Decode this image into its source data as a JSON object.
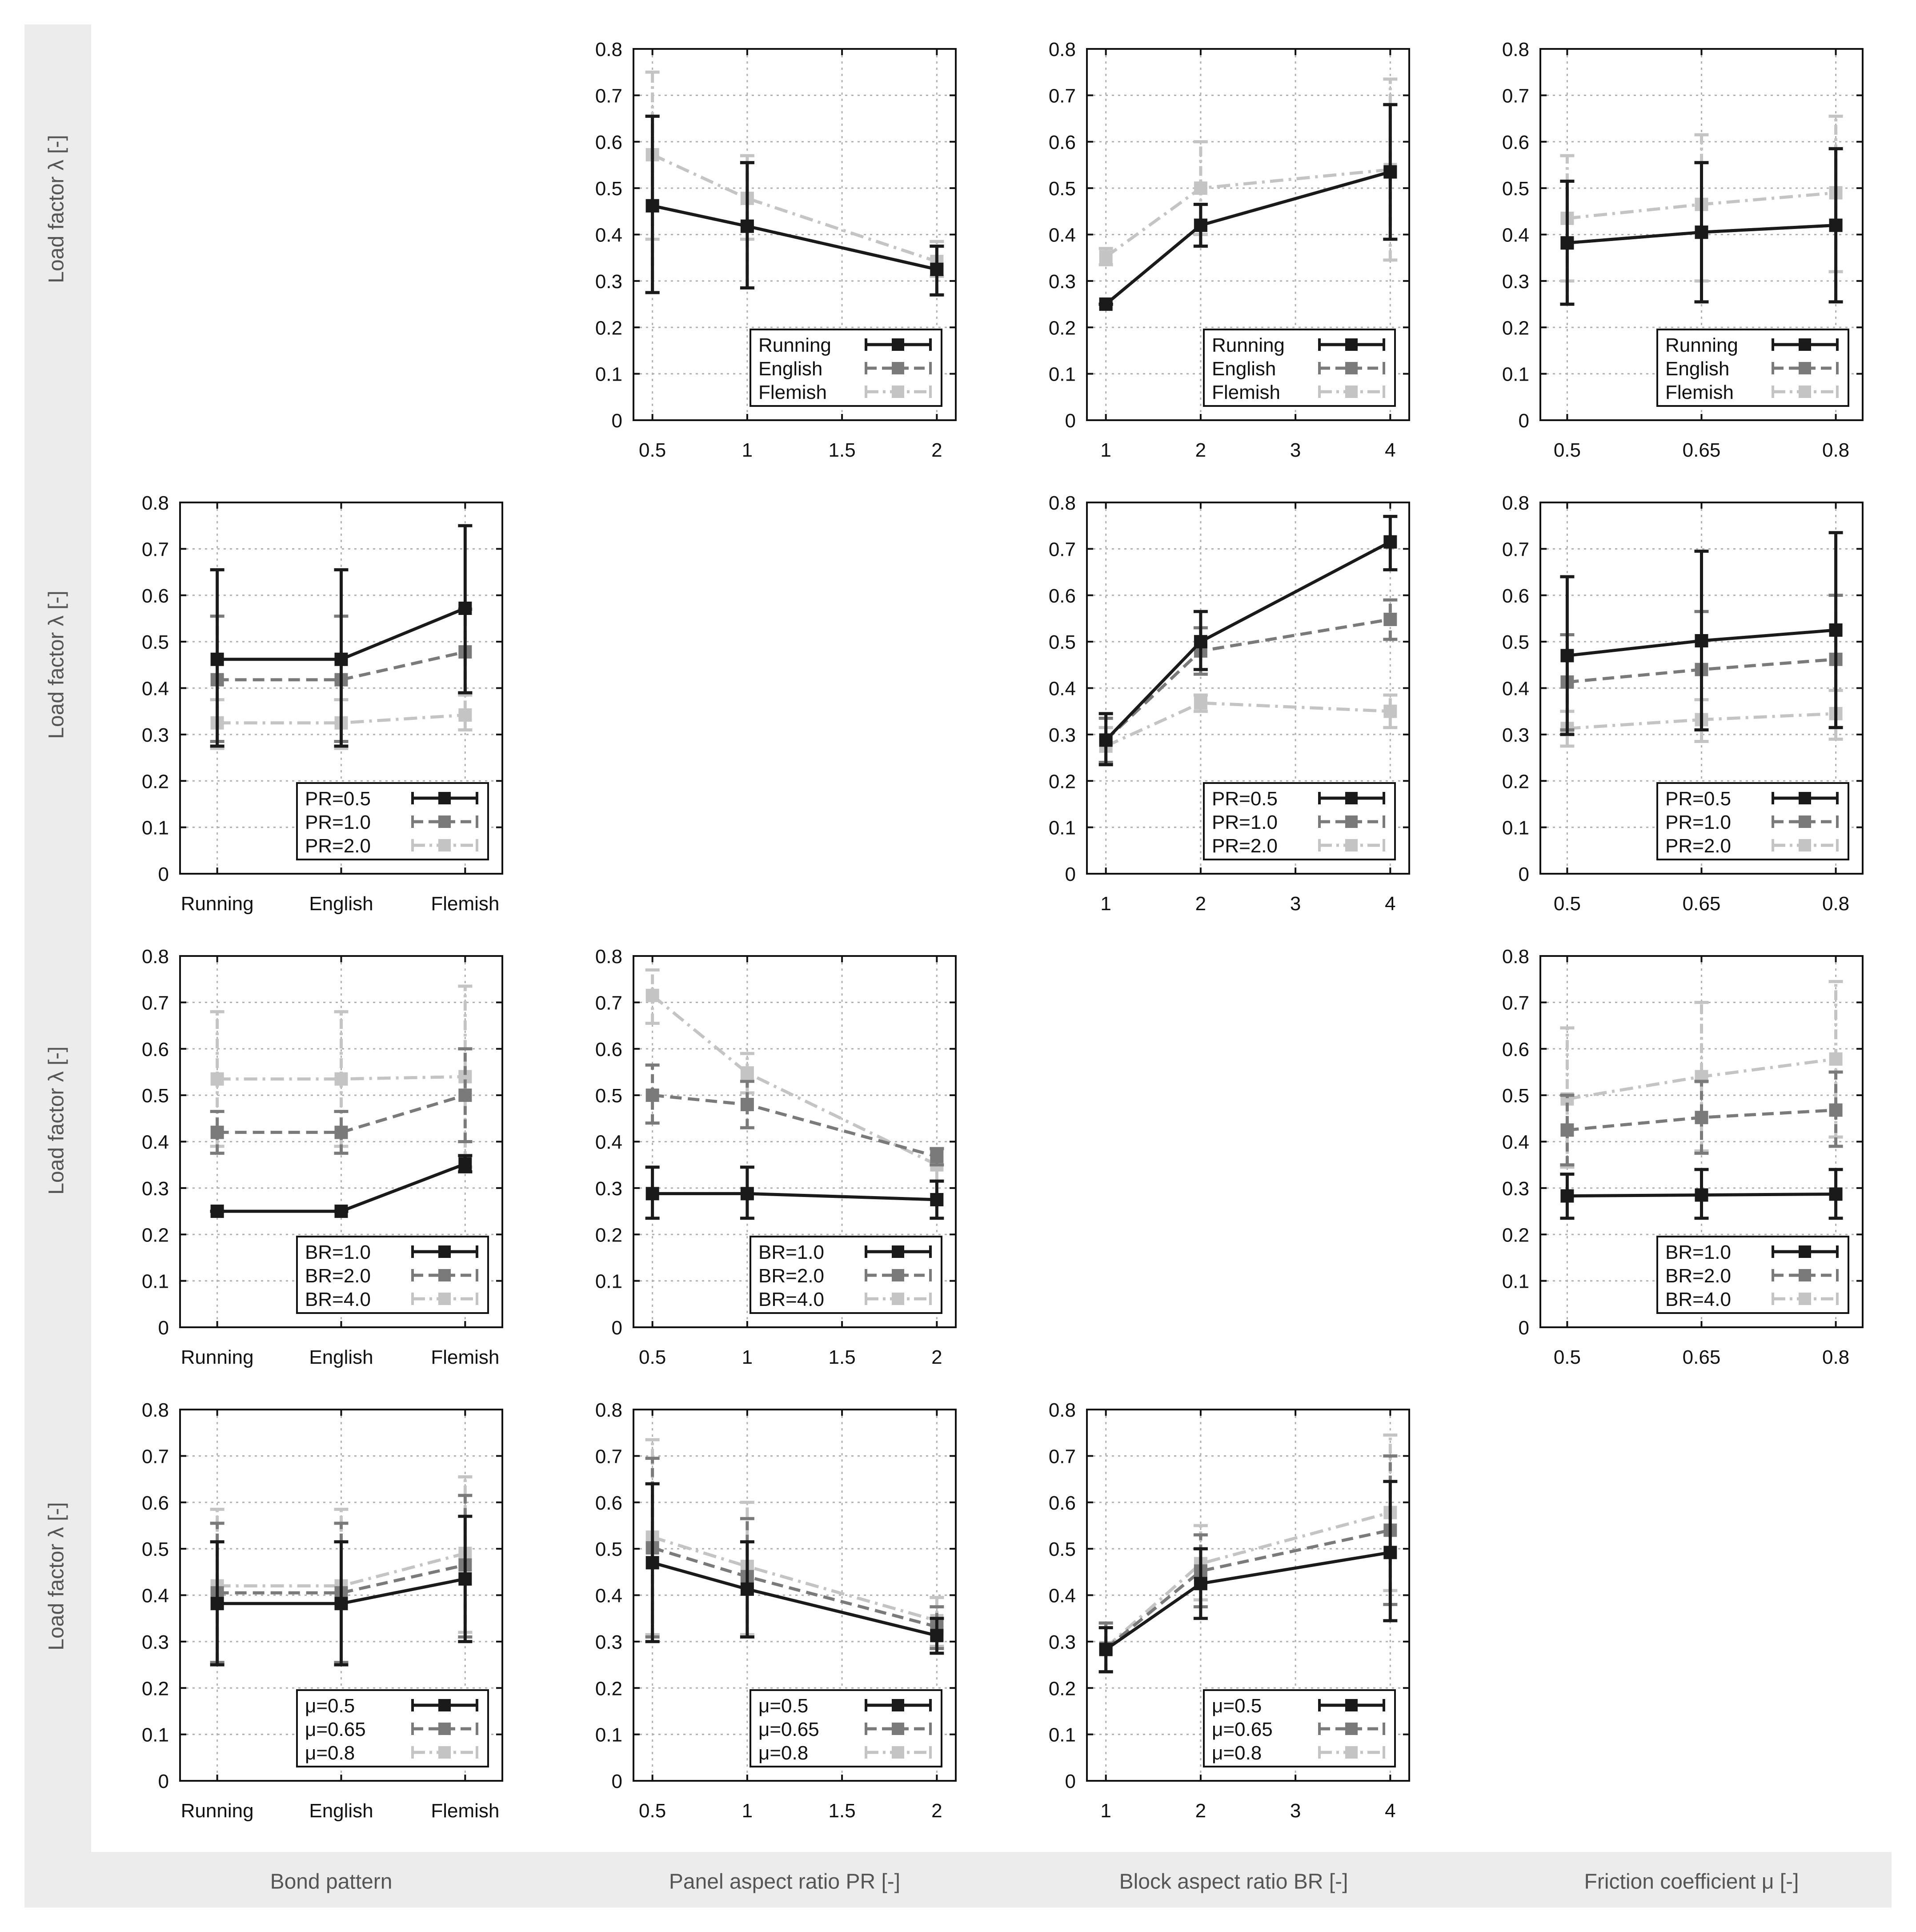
{
  "figure": {
    "row_labels": [
      "Load factor λ [-]",
      "Load factor λ [-]",
      "Load factor λ [-]",
      "Load factor λ [-]"
    ],
    "column_labels": [
      "Bond pattern",
      "Panel aspect ratio PR [-]",
      "Block aspect ratio BR [-]",
      "Friction coefficient μ [-]"
    ]
  },
  "styles": {
    "series_colors": [
      "#1a1a1a",
      "#7a7a7a",
      "#c4c4c4"
    ],
    "series_dash": [
      "solid",
      "dashed",
      "dashdot"
    ],
    "grid_color": "#b0b0b0"
  },
  "chart_data": [
    {
      "id": "r1c2",
      "type": "line",
      "ylim": [
        0,
        0.8
      ],
      "yticks": [
        "0",
        "0.1",
        "0.2",
        "0.3",
        "0.4",
        "0.5",
        "0.6",
        "0.7",
        "0.8"
      ],
      "x": [
        0.5,
        1,
        2
      ],
      "xlim": [
        0.4,
        2.1
      ],
      "xticks": [
        0.5,
        1,
        1.5,
        2
      ],
      "xtick_labels": [
        "0.5",
        "1",
        "1.5",
        "2"
      ],
      "series": [
        {
          "name": "Running",
          "values": [
            0.462,
            0.418,
            0.325
          ],
          "err_low": [
            0.275,
            0.285,
            0.27
          ],
          "err_high": [
            0.655,
            0.555,
            0.375
          ]
        },
        {
          "name": "English",
          "values": [
            0.462,
            0.418,
            0.325
          ],
          "err_low": [
            0.275,
            0.285,
            0.27
          ],
          "err_high": [
            0.655,
            0.555,
            0.375
          ]
        },
        {
          "name": "Flemish",
          "values": [
            0.572,
            0.478,
            0.342
          ],
          "err_low": [
            0.39,
            0.39,
            0.31
          ],
          "err_high": [
            0.75,
            0.57,
            0.385
          ]
        }
      ]
    },
    {
      "id": "r1c3",
      "type": "line",
      "ylim": [
        0,
        0.8
      ],
      "yticks": [
        "0",
        "0.1",
        "0.2",
        "0.3",
        "0.4",
        "0.5",
        "0.6",
        "0.7",
        "0.8"
      ],
      "x": [
        1,
        2,
        4
      ],
      "xlim": [
        0.8,
        4.2
      ],
      "xticks": [
        1,
        2,
        3,
        4
      ],
      "xtick_labels": [
        "1",
        "2",
        "3",
        "4"
      ],
      "series": [
        {
          "name": "Running",
          "values": [
            0.25,
            0.42,
            0.535
          ],
          "err_low": [
            0.25,
            0.375,
            0.39
          ],
          "err_high": [
            0.25,
            0.465,
            0.68
          ]
        },
        {
          "name": "English",
          "values": [
            0.25,
            0.42,
            0.535
          ],
          "err_low": [
            0.25,
            0.375,
            0.39
          ],
          "err_high": [
            0.25,
            0.465,
            0.68
          ]
        },
        {
          "name": "Flemish",
          "values": [
            0.352,
            0.5,
            0.54
          ],
          "err_low": [
            0.335,
            0.4,
            0.345
          ],
          "err_high": [
            0.37,
            0.6,
            0.735
          ]
        }
      ]
    },
    {
      "id": "r1c4",
      "type": "line",
      "ylim": [
        0,
        0.8
      ],
      "yticks": [
        "0",
        "0.1",
        "0.2",
        "0.3",
        "0.4",
        "0.5",
        "0.6",
        "0.7",
        "0.8"
      ],
      "x": [
        0.5,
        0.65,
        0.8
      ],
      "xlim": [
        0.47,
        0.83
      ],
      "xticks": [
        0.5,
        0.65,
        0.8
      ],
      "xtick_labels": [
        "0.5",
        "0.65",
        "0.8"
      ],
      "series": [
        {
          "name": "Running",
          "values": [
            0.382,
            0.405,
            0.42
          ],
          "err_low": [
            0.25,
            0.255,
            0.255
          ],
          "err_high": [
            0.515,
            0.555,
            0.585
          ]
        },
        {
          "name": "English",
          "values": [
            0.382,
            0.405,
            0.42
          ],
          "err_low": [
            0.25,
            0.255,
            0.255
          ],
          "err_high": [
            0.515,
            0.555,
            0.585
          ]
        },
        {
          "name": "Flemish",
          "values": [
            0.435,
            0.465,
            0.49
          ],
          "err_low": [
            0.3,
            0.3,
            0.32
          ],
          "err_high": [
            0.57,
            0.615,
            0.655
          ]
        }
      ]
    },
    {
      "id": "r2c1",
      "type": "line",
      "ylim": [
        0,
        0.8
      ],
      "yticks": [
        "0",
        "0.1",
        "0.2",
        "0.3",
        "0.4",
        "0.5",
        "0.6",
        "0.7",
        "0.8"
      ],
      "x": [
        1,
        2,
        3
      ],
      "xlim": [
        0.7,
        3.3
      ],
      "xticks": [
        1,
        2,
        3
      ],
      "xtick_labels": [
        "Running",
        "English",
        "Flemish"
      ],
      "series": [
        {
          "name": "PR=0.5",
          "values": [
            0.462,
            0.462,
            0.572
          ],
          "err_low": [
            0.275,
            0.275,
            0.39
          ],
          "err_high": [
            0.655,
            0.655,
            0.75
          ]
        },
        {
          "name": "PR=1.0",
          "values": [
            0.418,
            0.418,
            0.478
          ],
          "err_low": [
            0.285,
            0.285,
            0.39
          ],
          "err_high": [
            0.555,
            0.555,
            0.57
          ]
        },
        {
          "name": "PR=2.0",
          "values": [
            0.325,
            0.325,
            0.342
          ],
          "err_low": [
            0.27,
            0.27,
            0.31
          ],
          "err_high": [
            0.375,
            0.375,
            0.385
          ]
        }
      ]
    },
    {
      "id": "r2c3",
      "type": "line",
      "ylim": [
        0,
        0.8
      ],
      "yticks": [
        "0",
        "0.1",
        "0.2",
        "0.3",
        "0.4",
        "0.5",
        "0.6",
        "0.7",
        "0.8"
      ],
      "x": [
        1,
        2,
        4
      ],
      "xlim": [
        0.8,
        4.2
      ],
      "xticks": [
        1,
        2,
        3,
        4
      ],
      "xtick_labels": [
        "1",
        "2",
        "3",
        "4"
      ],
      "series": [
        {
          "name": "PR=0.5",
          "values": [
            0.288,
            0.5,
            0.715
          ],
          "err_low": [
            0.235,
            0.44,
            0.655
          ],
          "err_high": [
            0.345,
            0.565,
            0.77
          ]
        },
        {
          "name": "PR=1.0",
          "values": [
            0.288,
            0.48,
            0.548
          ],
          "err_low": [
            0.24,
            0.43,
            0.505
          ],
          "err_high": [
            0.335,
            0.53,
            0.59
          ]
        },
        {
          "name": "PR=2.0",
          "values": [
            0.275,
            0.368,
            0.35
          ],
          "err_low": [
            0.235,
            0.35,
            0.315
          ],
          "err_high": [
            0.315,
            0.385,
            0.385
          ]
        }
      ]
    },
    {
      "id": "r2c4",
      "type": "line",
      "ylim": [
        0,
        0.8
      ],
      "yticks": [
        "0",
        "0.1",
        "0.2",
        "0.3",
        "0.4",
        "0.5",
        "0.6",
        "0.7",
        "0.8"
      ],
      "x": [
        0.5,
        0.65,
        0.8
      ],
      "xlim": [
        0.47,
        0.83
      ],
      "xticks": [
        0.5,
        0.65,
        0.8
      ],
      "xtick_labels": [
        "0.5",
        "0.65",
        "0.8"
      ],
      "series": [
        {
          "name": "PR=0.5",
          "values": [
            0.47,
            0.502,
            0.525
          ],
          "err_low": [
            0.3,
            0.31,
            0.315
          ],
          "err_high": [
            0.64,
            0.695,
            0.735
          ]
        },
        {
          "name": "PR=1.0",
          "values": [
            0.413,
            0.44,
            0.462
          ],
          "err_low": [
            0.31,
            0.31,
            0.315
          ],
          "err_high": [
            0.515,
            0.565,
            0.6
          ]
        },
        {
          "name": "PR=2.0",
          "values": [
            0.313,
            0.332,
            0.345
          ],
          "err_low": [
            0.275,
            0.285,
            0.29
          ],
          "err_high": [
            0.35,
            0.375,
            0.395
          ]
        }
      ]
    },
    {
      "id": "r3c1",
      "type": "line",
      "ylim": [
        0,
        0.8
      ],
      "yticks": [
        "0",
        "0.1",
        "0.2",
        "0.3",
        "0.4",
        "0.5",
        "0.6",
        "0.7",
        "0.8"
      ],
      "x": [
        1,
        2,
        3
      ],
      "xlim": [
        0.7,
        3.3
      ],
      "xticks": [
        1,
        2,
        3
      ],
      "xtick_labels": [
        "Running",
        "English",
        "Flemish"
      ],
      "series": [
        {
          "name": "BR=1.0",
          "values": [
            0.25,
            0.25,
            0.352
          ],
          "err_low": [
            0.25,
            0.25,
            0.335
          ],
          "err_high": [
            0.25,
            0.25,
            0.37
          ]
        },
        {
          "name": "BR=2.0",
          "values": [
            0.42,
            0.42,
            0.5
          ],
          "err_low": [
            0.375,
            0.375,
            0.4
          ],
          "err_high": [
            0.465,
            0.465,
            0.6
          ]
        },
        {
          "name": "BR=4.0",
          "values": [
            0.535,
            0.535,
            0.54
          ],
          "err_low": [
            0.39,
            0.39,
            0.345
          ],
          "err_high": [
            0.68,
            0.68,
            0.735
          ]
        }
      ]
    },
    {
      "id": "r3c2",
      "type": "line",
      "ylim": [
        0,
        0.8
      ],
      "yticks": [
        "0",
        "0.1",
        "0.2",
        "0.3",
        "0.4",
        "0.5",
        "0.6",
        "0.7",
        "0.8"
      ],
      "x": [
        0.5,
        1,
        2
      ],
      "xlim": [
        0.4,
        2.1
      ],
      "xticks": [
        0.5,
        1,
        1.5,
        2
      ],
      "xtick_labels": [
        "0.5",
        "1",
        "1.5",
        "2"
      ],
      "series": [
        {
          "name": "BR=1.0",
          "values": [
            0.288,
            0.288,
            0.275
          ],
          "err_low": [
            0.235,
            0.235,
            0.235
          ],
          "err_high": [
            0.345,
            0.345,
            0.315
          ]
        },
        {
          "name": "BR=2.0",
          "values": [
            0.5,
            0.48,
            0.368
          ],
          "err_low": [
            0.44,
            0.43,
            0.35
          ],
          "err_high": [
            0.565,
            0.53,
            0.385
          ]
        },
        {
          "name": "BR=4.0",
          "values": [
            0.715,
            0.548,
            0.35
          ],
          "err_low": [
            0.655,
            0.505,
            0.315
          ],
          "err_high": [
            0.77,
            0.59,
            0.385
          ]
        }
      ]
    },
    {
      "id": "r3c4",
      "type": "line",
      "ylim": [
        0,
        0.8
      ],
      "yticks": [
        "0",
        "0.1",
        "0.2",
        "0.3",
        "0.4",
        "0.5",
        "0.6",
        "0.7",
        "0.8"
      ],
      "x": [
        0.5,
        0.65,
        0.8
      ],
      "xlim": [
        0.47,
        0.83
      ],
      "xticks": [
        0.5,
        0.65,
        0.8
      ],
      "xtick_labels": [
        "0.5",
        "0.65",
        "0.8"
      ],
      "series": [
        {
          "name": "BR=1.0",
          "values": [
            0.283,
            0.285,
            0.287
          ],
          "err_low": [
            0.235,
            0.235,
            0.235
          ],
          "err_high": [
            0.33,
            0.34,
            0.34
          ]
        },
        {
          "name": "BR=2.0",
          "values": [
            0.425,
            0.452,
            0.468
          ],
          "err_low": [
            0.35,
            0.375,
            0.39
          ],
          "err_high": [
            0.5,
            0.53,
            0.55
          ]
        },
        {
          "name": "BR=4.0",
          "values": [
            0.492,
            0.54,
            0.578
          ],
          "err_low": [
            0.345,
            0.38,
            0.41
          ],
          "err_high": [
            0.645,
            0.7,
            0.745
          ]
        }
      ]
    },
    {
      "id": "r4c1",
      "type": "line",
      "ylim": [
        0,
        0.8
      ],
      "yticks": [
        "0",
        "0.1",
        "0.2",
        "0.3",
        "0.4",
        "0.5",
        "0.6",
        "0.7",
        "0.8"
      ],
      "x": [
        1,
        2,
        3
      ],
      "xlim": [
        0.7,
        3.3
      ],
      "xticks": [
        1,
        2,
        3
      ],
      "xtick_labels": [
        "Running",
        "English",
        "Flemish"
      ],
      "series": [
        {
          "name": "μ=0.5",
          "values": [
            0.382,
            0.382,
            0.435
          ],
          "err_low": [
            0.25,
            0.25,
            0.3
          ],
          "err_high": [
            0.515,
            0.515,
            0.57
          ]
        },
        {
          "name": "μ=0.65",
          "values": [
            0.405,
            0.405,
            0.465
          ],
          "err_low": [
            0.255,
            0.255,
            0.31
          ],
          "err_high": [
            0.555,
            0.555,
            0.615
          ]
        },
        {
          "name": "μ=0.8",
          "values": [
            0.42,
            0.42,
            0.49
          ],
          "err_low": [
            0.255,
            0.255,
            0.32
          ],
          "err_high": [
            0.585,
            0.585,
            0.655
          ]
        }
      ]
    },
    {
      "id": "r4c2",
      "type": "line",
      "ylim": [
        0,
        0.8
      ],
      "yticks": [
        "0",
        "0.1",
        "0.2",
        "0.3",
        "0.4",
        "0.5",
        "0.6",
        "0.7",
        "0.8"
      ],
      "x": [
        0.5,
        1,
        2
      ],
      "xlim": [
        0.4,
        2.1
      ],
      "xticks": [
        0.5,
        1,
        1.5,
        2
      ],
      "xtick_labels": [
        "0.5",
        "1",
        "1.5",
        "2"
      ],
      "series": [
        {
          "name": "μ=0.5",
          "values": [
            0.47,
            0.413,
            0.313
          ],
          "err_low": [
            0.3,
            0.31,
            0.275
          ],
          "err_high": [
            0.64,
            0.515,
            0.35
          ]
        },
        {
          "name": "μ=0.65",
          "values": [
            0.502,
            0.44,
            0.332
          ],
          "err_low": [
            0.31,
            0.31,
            0.285
          ],
          "err_high": [
            0.695,
            0.565,
            0.375
          ]
        },
        {
          "name": "μ=0.8",
          "values": [
            0.525,
            0.462,
            0.345
          ],
          "err_low": [
            0.315,
            0.315,
            0.29
          ],
          "err_high": [
            0.735,
            0.6,
            0.395
          ]
        }
      ]
    },
    {
      "id": "r4c3",
      "type": "line",
      "ylim": [
        0,
        0.8
      ],
      "yticks": [
        "0",
        "0.1",
        "0.2",
        "0.3",
        "0.4",
        "0.5",
        "0.6",
        "0.7",
        "0.8"
      ],
      "x": [
        1,
        2,
        4
      ],
      "xlim": [
        0.8,
        4.2
      ],
      "xticks": [
        1,
        2,
        3,
        4
      ],
      "xtick_labels": [
        "1",
        "2",
        "3",
        "4"
      ],
      "series": [
        {
          "name": "μ=0.5",
          "values": [
            0.283,
            0.425,
            0.492
          ],
          "err_low": [
            0.235,
            0.35,
            0.345
          ],
          "err_high": [
            0.33,
            0.5,
            0.645
          ]
        },
        {
          "name": "μ=0.65",
          "values": [
            0.285,
            0.452,
            0.54
          ],
          "err_low": [
            0.235,
            0.375,
            0.38
          ],
          "err_high": [
            0.34,
            0.53,
            0.7
          ]
        },
        {
          "name": "μ=0.8",
          "values": [
            0.287,
            0.468,
            0.578
          ],
          "err_low": [
            0.235,
            0.39,
            0.41
          ],
          "err_high": [
            0.34,
            0.55,
            0.745
          ]
        }
      ]
    }
  ]
}
